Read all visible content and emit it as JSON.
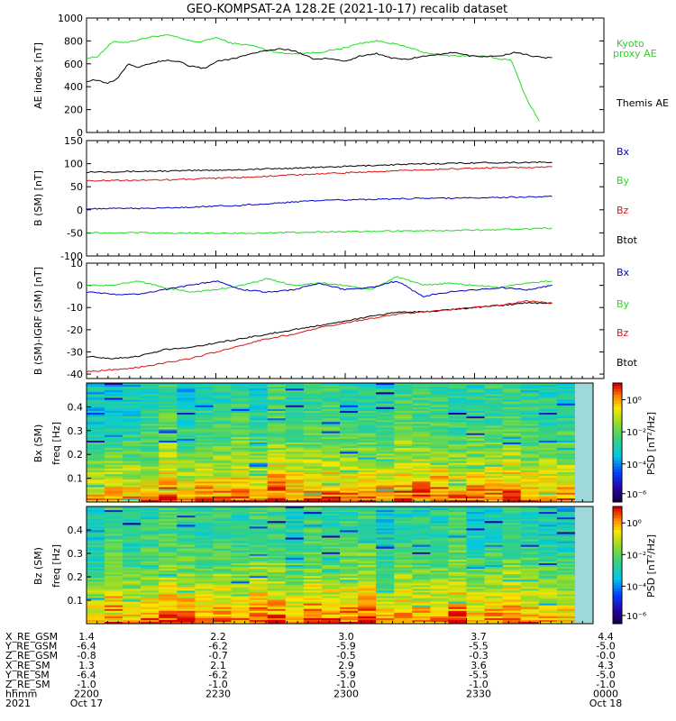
{
  "title": "GEO-KOMPSAT-2A 128.2E (2021-10-17) recalib dataset",
  "colors": {
    "black": "#000000",
    "green": "#22dd22",
    "red": "#dd1111",
    "blue": "#0000cc",
    "kyoto": "#33cc33"
  },
  "chart_data": [
    {
      "type": "line",
      "ylabel": "AE index [nT]",
      "ylim": [
        0,
        1000
      ],
      "yticks": [
        "0",
        "200",
        "400",
        "600",
        "800",
        "1000"
      ],
      "xlim": [
        2200,
        2400
      ],
      "legend": [
        "Kyoto proxy AE",
        "Themis AE"
      ],
      "series": [
        {
          "name": "Kyoto proxy AE",
          "color": "green",
          "x": [
            2200,
            2204,
            2210,
            2216,
            2222,
            2226,
            2232,
            2240,
            2244,
            2250,
            2256,
            2264,
            2270,
            2276,
            2282,
            2290,
            2298,
            2306,
            2312,
            2318,
            2325,
            2330,
            2340,
            2350,
            2356,
            2360,
            2364,
            2370,
            2375
          ],
          "y": [
            650,
            660,
            790,
            790,
            820,
            840,
            850,
            800,
            790,
            830,
            780,
            760,
            720,
            690,
            690,
            700,
            730,
            780,
            800,
            780,
            740,
            700,
            670,
            670,
            660,
            640,
            640,
            300,
            100
          ]
        },
        {
          "name": "Themis AE",
          "color": "black",
          "x": [
            2200,
            2204,
            2208,
            2212,
            2216,
            2220,
            2224,
            2228,
            2232,
            2236,
            2240,
            2246,
            2250,
            2256,
            2262,
            2266,
            2270,
            2276,
            2282,
            2288,
            2294,
            2300,
            2306,
            2312,
            2318,
            2324,
            2330,
            2336,
            2342,
            2348,
            2354,
            2360,
            2366,
            2374,
            2380
          ],
          "y": [
            450,
            460,
            430,
            470,
            600,
            570,
            600,
            620,
            630,
            620,
            580,
            560,
            620,
            640,
            680,
            700,
            720,
            730,
            700,
            640,
            650,
            620,
            670,
            690,
            650,
            640,
            670,
            680,
            700,
            670,
            660,
            670,
            700,
            660,
            650
          ]
        }
      ]
    },
    {
      "type": "line",
      "ylabel": "B (SM) [nT]",
      "ylim": [
        -100,
        150
      ],
      "yticks": [
        "-100",
        "-50",
        "0",
        "50",
        "100",
        "150"
      ],
      "xlim": [
        2200,
        2400
      ],
      "legend": [
        "Bx",
        "By",
        "Bz",
        "Btot"
      ],
      "series": [
        {
          "name": "Btot",
          "color": "black",
          "x": [
            2200,
            2230,
            2260,
            2290,
            2320,
            2350,
            2380
          ],
          "y": [
            82,
            84,
            87,
            92,
            98,
            102,
            103
          ]
        },
        {
          "name": "Bz",
          "color": "red",
          "x": [
            2200,
            2230,
            2260,
            2290,
            2320,
            2350,
            2380
          ],
          "y": [
            63,
            65,
            70,
            78,
            85,
            90,
            93
          ]
        },
        {
          "name": "Bx",
          "color": "blue",
          "x": [
            2200,
            2230,
            2260,
            2290,
            2320,
            2350,
            2380
          ],
          "y": [
            2,
            4,
            10,
            20,
            24,
            26,
            29
          ]
        },
        {
          "name": "By",
          "color": "green",
          "x": [
            2200,
            2230,
            2260,
            2290,
            2320,
            2350,
            2380
          ],
          "y": [
            -50,
            -50,
            -51,
            -48,
            -46,
            -44,
            -40
          ]
        }
      ]
    },
    {
      "type": "line",
      "ylabel": "B (SM)-IGRF (SM) [nT]",
      "ylim": [
        -42,
        10
      ],
      "yticks": [
        "-40",
        "-30",
        "-20",
        "-10",
        "0",
        "10"
      ],
      "xlim": [
        2200,
        2400
      ],
      "legend": [
        "Bx",
        "By",
        "Bz",
        "Btot"
      ],
      "series": [
        {
          "name": "By",
          "color": "green",
          "x": [
            2200,
            2210,
            2220,
            2230,
            2240,
            2250,
            2260,
            2270,
            2280,
            2290,
            2300,
            2310,
            2320,
            2330,
            2340,
            2350,
            2360,
            2370,
            2380
          ],
          "y": [
            0,
            0,
            2,
            -1,
            -3,
            -2,
            0,
            3,
            0,
            1,
            0,
            -2,
            4,
            0,
            1,
            0,
            -1,
            1,
            2
          ]
        },
        {
          "name": "Bx",
          "color": "blue",
          "x": [
            2200,
            2210,
            2220,
            2230,
            2240,
            2250,
            2260,
            2270,
            2280,
            2290,
            2300,
            2310,
            2320,
            2330,
            2340,
            2350,
            2360,
            2370,
            2380
          ],
          "y": [
            -3,
            -4,
            -4,
            -2,
            0,
            2,
            -2,
            -3,
            -2,
            1,
            -2,
            -1,
            2,
            -5,
            -3,
            -2,
            -1,
            -2,
            0
          ]
        },
        {
          "name": "Btot",
          "color": "black",
          "x": [
            2200,
            2210,
            2220,
            2230,
            2240,
            2250,
            2260,
            2270,
            2280,
            2290,
            2300,
            2310,
            2320,
            2330,
            2340,
            2350,
            2360,
            2370,
            2380
          ],
          "y": [
            -32,
            -33,
            -32,
            -29,
            -28,
            -26,
            -24,
            -22,
            -20,
            -18,
            -16,
            -14,
            -12,
            -12,
            -11,
            -10,
            -9,
            -8,
            -8
          ]
        },
        {
          "name": "Bz",
          "color": "red",
          "x": [
            2200,
            2210,
            2220,
            2230,
            2240,
            2250,
            2260,
            2270,
            2280,
            2290,
            2300,
            2310,
            2320,
            2330,
            2340,
            2350,
            2360,
            2370,
            2380
          ],
          "y": [
            -39,
            -38,
            -37,
            -35,
            -33,
            -30,
            -27,
            -24,
            -22,
            -19,
            -17,
            -15,
            -13,
            -12,
            -11,
            -10,
            -9,
            -7,
            -8
          ]
        }
      ]
    },
    {
      "type": "heatmap",
      "ylabel": "Bx (SM)",
      "ylabel2": "freq [Hz]",
      "ylim": [
        0,
        0.5
      ],
      "yticks": [
        "0.1",
        "0.2",
        "0.3",
        "0.4"
      ],
      "colorbar_label": "PSD [nT²/Hz]",
      "colorbar_ticks": [
        "10⁰",
        "10⁻²",
        "10⁻⁴",
        "10⁻⁶"
      ]
    },
    {
      "type": "heatmap",
      "ylabel": "Bz (SM)",
      "ylabel2": "freq [Hz]",
      "ylim": [
        0,
        0.5
      ],
      "yticks": [
        "0.1",
        "0.2",
        "0.3",
        "0.4"
      ],
      "colorbar_label": "PSD [nT²/Hz]",
      "colorbar_ticks": [
        "10⁰",
        "10⁻²",
        "10⁻⁴",
        "10⁻⁶"
      ]
    }
  ],
  "legends": {
    "ae": [
      "Kyoto",
      "proxy AE",
      "Themis AE"
    ],
    "b": [
      "Bx",
      "By",
      "Bz",
      "Btot"
    ]
  },
  "ephemeris": {
    "labels": [
      "X_RE_GSM",
      "Y_RE_GSM",
      "Z_RE_GSM",
      "X_RE_SM",
      "Y_RE_SM",
      "Z_RE_SM",
      "hhmm",
      "2021"
    ],
    "columns": [
      [
        "1.4",
        "-6.4",
        "-0.8",
        "1.3",
        "-6.4",
        "-1.0",
        "2200",
        "Oct 17"
      ],
      [
        "2.2",
        "-6.2",
        "-0.7",
        "2.1",
        "-6.2",
        "-1.0",
        "2230",
        ""
      ],
      [
        "3.0",
        "-5.9",
        "-0.5",
        "2.9",
        "-5.9",
        "-1.0",
        "2300",
        ""
      ],
      [
        "3.7",
        "-5.5",
        "-0.3",
        "3.6",
        "-5.5",
        "-1.0",
        "2330",
        ""
      ],
      [
        "4.4",
        "-5.0",
        "-0.0",
        "4.3",
        "-5.0",
        "-1.0",
        "0000",
        "Oct 18"
      ]
    ]
  }
}
